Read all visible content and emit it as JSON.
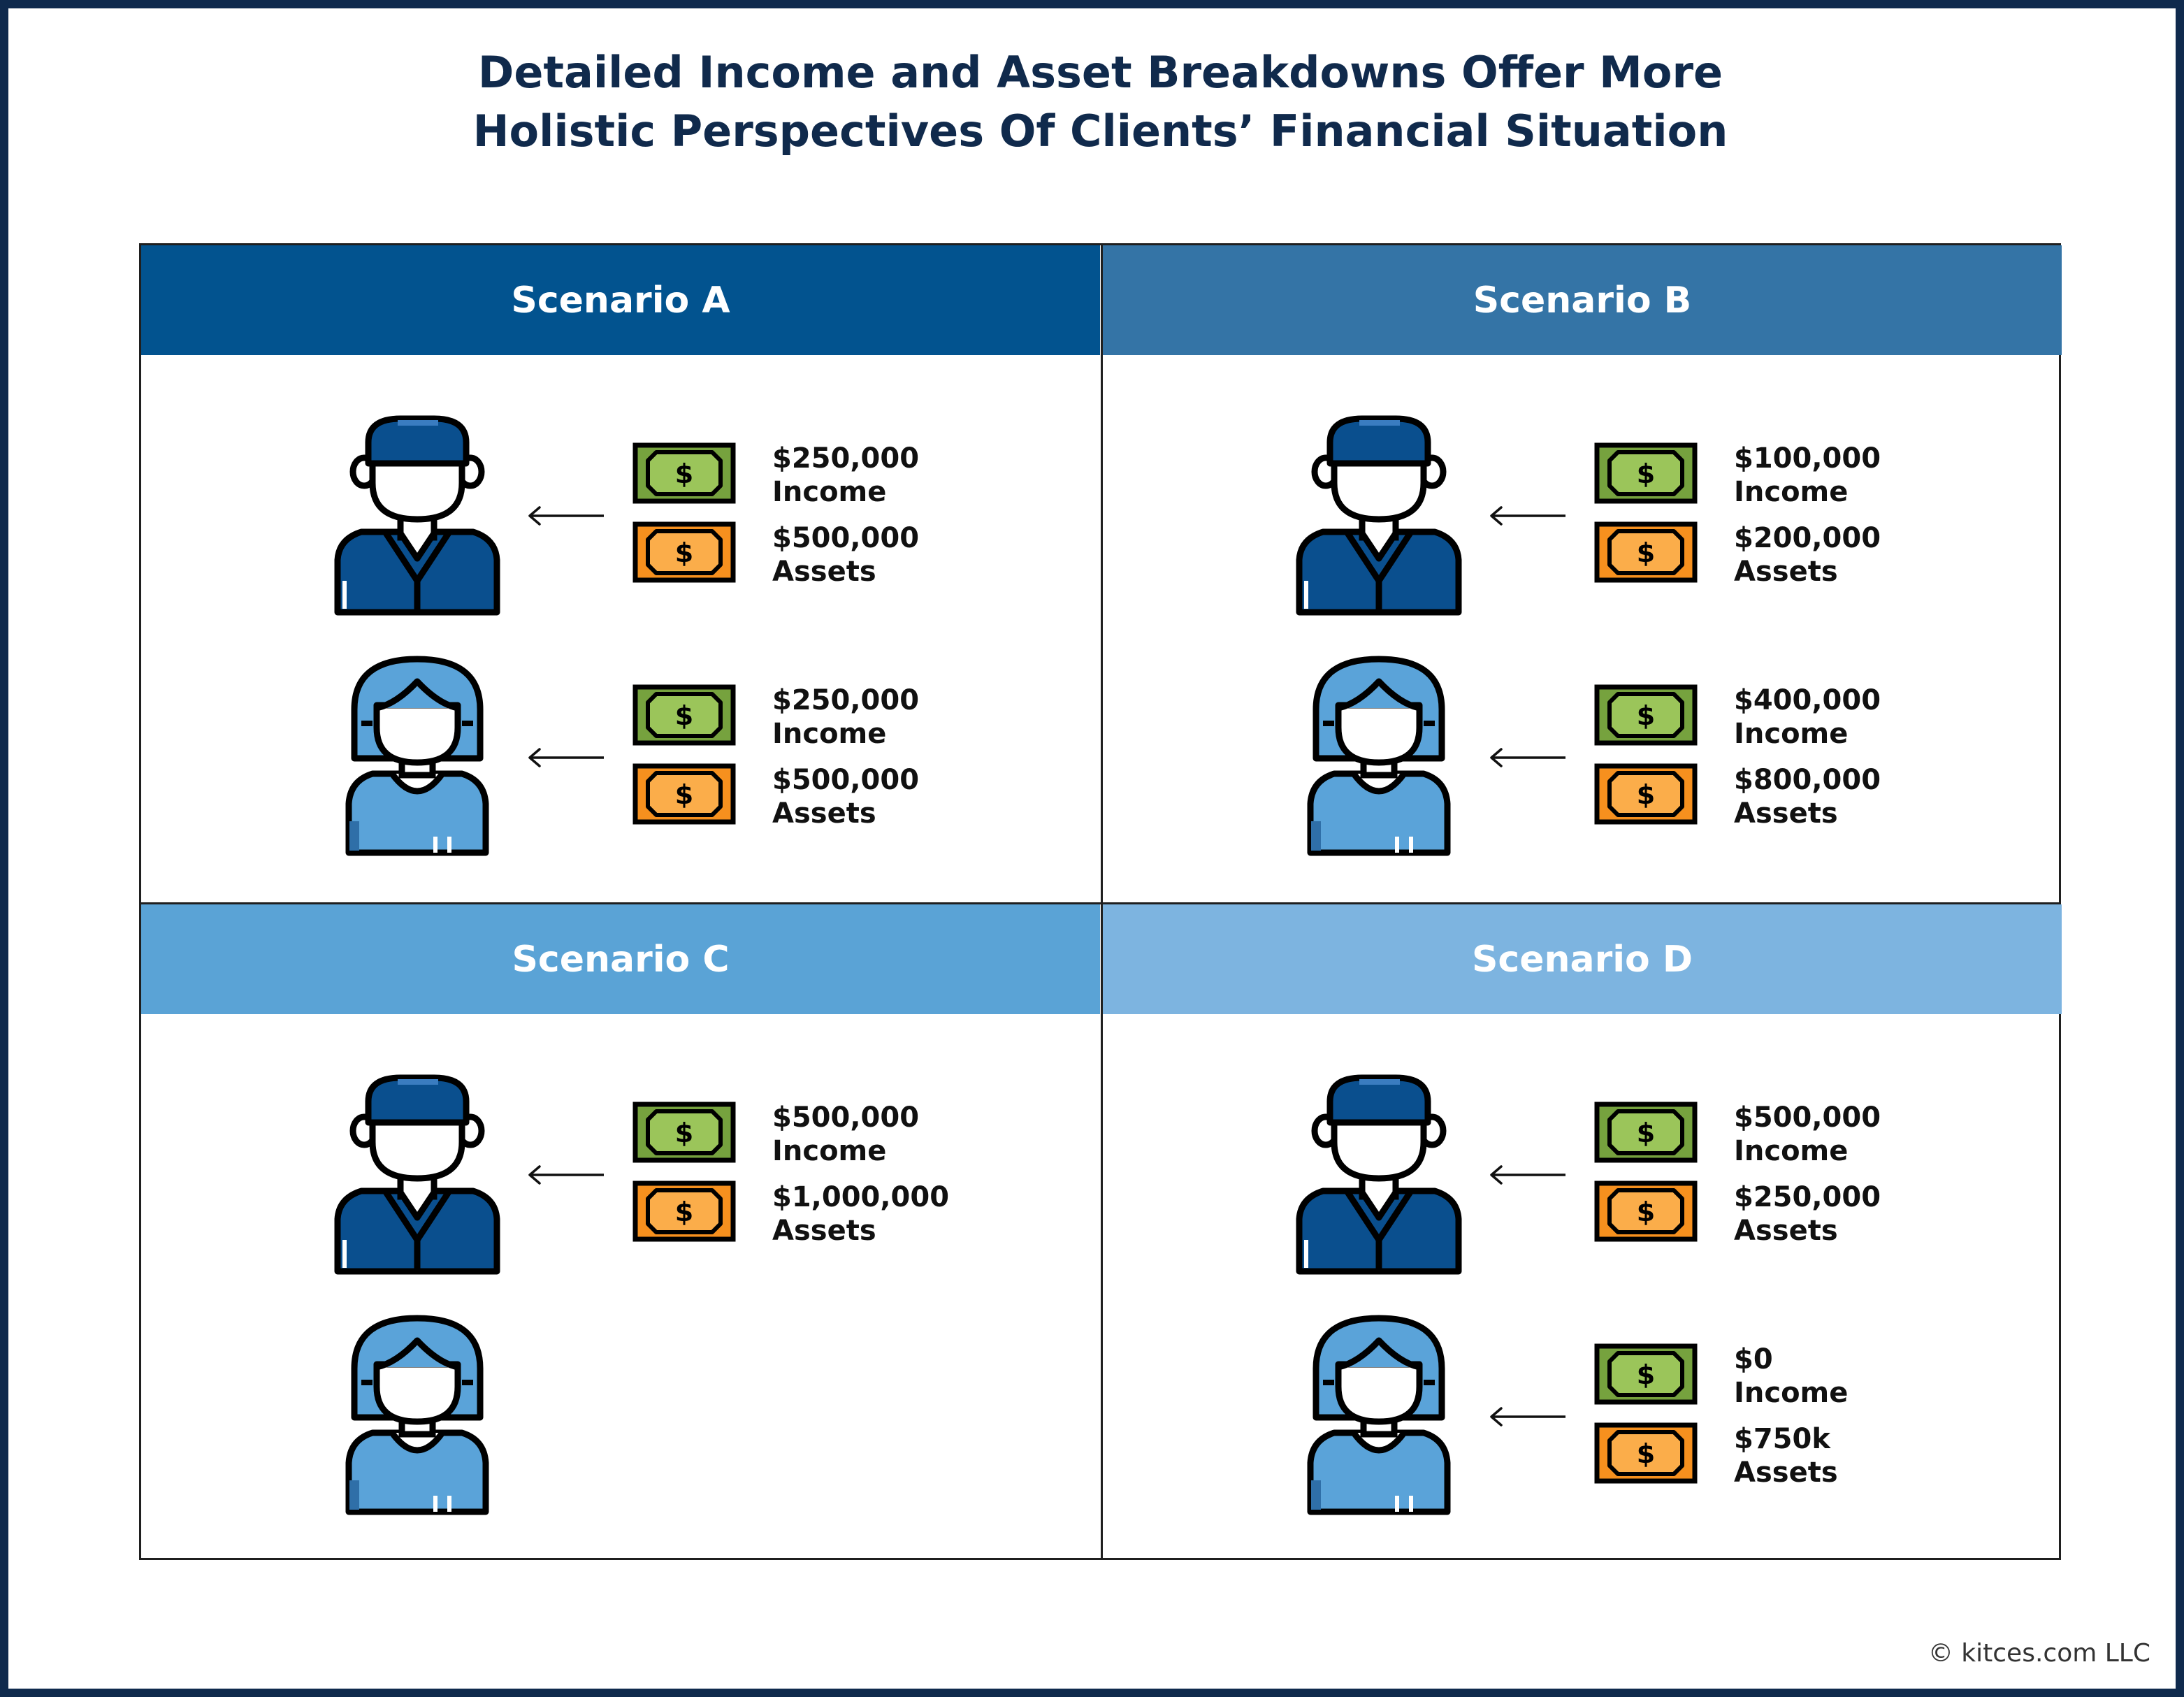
{
  "title_lines": [
    "Detailed Income and Asset Breakdowns Offer More",
    "Holistic Perspectives Of Clients’ Financial Situation"
  ],
  "colors": {
    "navy": "#0f2a4d",
    "scenario_a": "#02538f",
    "scenario_b": "#3474a6",
    "scenario_c": "#5aa3d6",
    "scenario_d": "#7db4e0",
    "man_blue": "#0a4f8e",
    "woman_blue": "#5aa3d9",
    "income_bill": "#76a23e",
    "asset_bill": "#f6901e"
  },
  "icons": {
    "man": "man-avatar-icon",
    "woman": "woman-avatar-icon",
    "income": "green-dollar-bill-icon",
    "assets": "orange-dollar-bill-icon",
    "arrow": "left-arrow-icon"
  },
  "scenarios": [
    {
      "label": "Scenario A",
      "man": {
        "income": "$250,000",
        "income_label": "Income",
        "assets": "$500,000",
        "assets_label": "Assets"
      },
      "woman": {
        "income": "$250,000",
        "income_label": "Income",
        "assets": "$500,000",
        "assets_label": "Assets"
      }
    },
    {
      "label": "Scenario B",
      "man": {
        "income": "$100,000",
        "income_label": "Income",
        "assets": "$200,000",
        "assets_label": "Assets"
      },
      "woman": {
        "income": "$400,000",
        "income_label": "Income",
        "assets": "$800,000",
        "assets_label": "Assets"
      }
    },
    {
      "label": "Scenario C",
      "man": {
        "income": "$500,000",
        "income_label": "Income",
        "assets": "$1,000,000",
        "assets_label": "Assets"
      }
    },
    {
      "label": "Scenario D",
      "man": {
        "income": "$500,000",
        "income_label": "Income",
        "assets": "$250,000",
        "assets_label": "Assets"
      },
      "woman": {
        "income": "$0",
        "income_label": "Income",
        "assets": "$750k",
        "assets_label": "Assets"
      }
    }
  ],
  "footer": "© kitces.com LLC"
}
